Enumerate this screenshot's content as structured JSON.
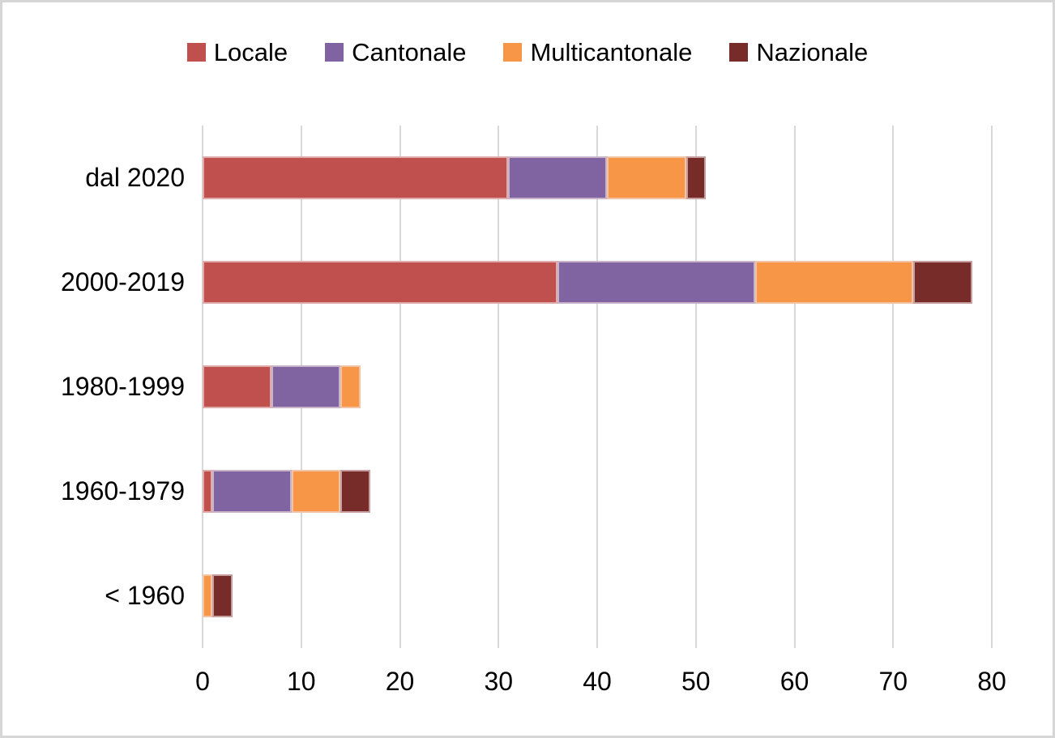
{
  "chart_data": {
    "type": "bar",
    "orientation": "horizontal",
    "stacked": true,
    "title": "",
    "xlabel": "",
    "ylabel": "",
    "categories": [
      "dal 2020",
      "2000-2019",
      "1980-1999",
      "1960-1979",
      "< 1960"
    ],
    "series": [
      {
        "name": "Locale",
        "color": "#C0504D",
        "values": [
          31,
          36,
          7,
          1,
          0
        ]
      },
      {
        "name": "Cantonale",
        "color": "#8064A2",
        "values": [
          10,
          20,
          7,
          8,
          0
        ]
      },
      {
        "name": "Multicantonale",
        "color": "#F79646",
        "values": [
          8,
          16,
          2,
          5,
          1
        ]
      },
      {
        "name": "Nazionale",
        "color": "#772C2A",
        "values": [
          2,
          6,
          0,
          3,
          2
        ]
      }
    ],
    "totals": [
      51,
      78,
      16,
      17,
      3
    ],
    "xlim": [
      0,
      80
    ],
    "x_ticks": [
      0,
      10,
      20,
      30,
      40,
      50,
      60,
      70,
      80
    ],
    "grid": "vertical",
    "legend_position": "top",
    "colors": {
      "gridline": "#D9D9D9",
      "frame_border": "#D6D6D6",
      "text": "#000000",
      "background": "#FFFFFF"
    }
  }
}
